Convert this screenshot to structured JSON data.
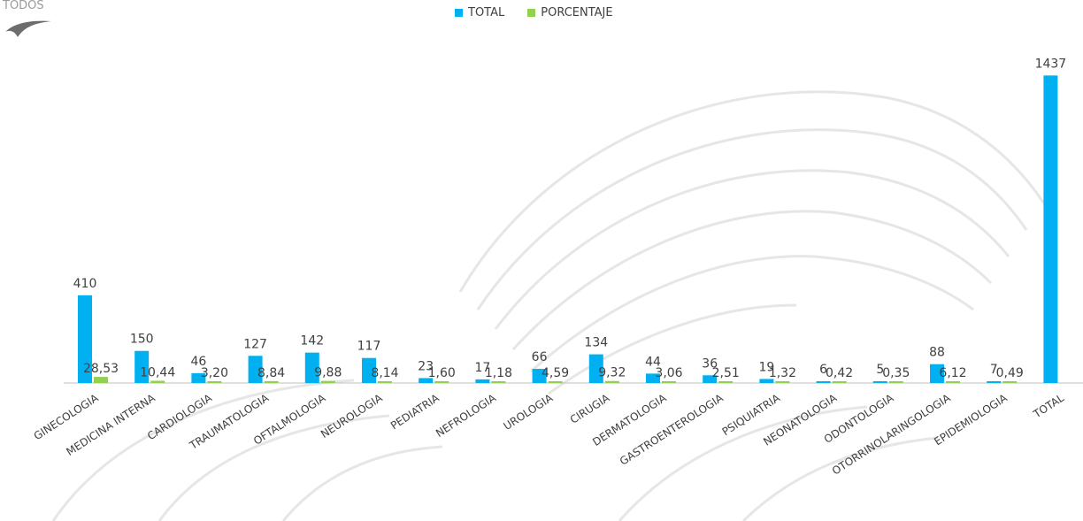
{
  "logo_text": "TODOS",
  "colors": {
    "total": "#00b0f0",
    "porcentaje": "#92d050",
    "text": "#404040",
    "axis": "#bfbfbf",
    "watermark": "#e8e8e8"
  },
  "chart_data": {
    "type": "bar",
    "title": "",
    "xlabel": "",
    "ylabel": "",
    "legend_position": "top",
    "grid": false,
    "ylim": [
      0,
      1550
    ],
    "categories": [
      "GINECOLOGIA",
      "MEDICINA INTERNA",
      "CARDIOLOGIA",
      "TRAUMATOLOGIA",
      "OFTALMOLOGIA",
      "NEUROLOGIA",
      "PEDIATRIA",
      "NEFROLOGIA",
      "UROLOGIA",
      "CIRUGIA",
      "DERMATOLOGIA",
      "GASTROENTEROLOGIA",
      "PSIQUIATRIA",
      "NEONATOLOGIA",
      "ODONTOLOGIA",
      "OTORRINOLARINGOLOGIA",
      "EPIDEMIOLOGIA",
      "TOTAL"
    ],
    "series": [
      {
        "name": "TOTAL",
        "values": [
          410,
          150,
          46,
          127,
          142,
          117,
          23,
          17,
          66,
          134,
          44,
          36,
          19,
          6,
          5,
          88,
          7,
          1437
        ],
        "labels": [
          "410",
          "150",
          "46",
          "127",
          "142",
          "117",
          "23",
          "17",
          "66",
          "134",
          "44",
          "36",
          "19",
          "6",
          "5",
          "88",
          "7",
          "1437"
        ]
      },
      {
        "name": "PORCENTAJE",
        "values": [
          28.53,
          10.44,
          3.2,
          8.84,
          9.88,
          8.14,
          1.6,
          1.18,
          4.59,
          9.32,
          3.06,
          2.51,
          1.32,
          0.42,
          0.35,
          6.12,
          0.49,
          null
        ],
        "labels": [
          "28,53",
          "10,44",
          "3,20",
          "8,84",
          "9,88",
          "8,14",
          "1,60",
          "1,18",
          "4,59",
          "9,32",
          "3,06",
          "2,51",
          "1,32",
          "0,42",
          "0,35",
          "6,12",
          "0,49",
          ""
        ]
      }
    ]
  }
}
